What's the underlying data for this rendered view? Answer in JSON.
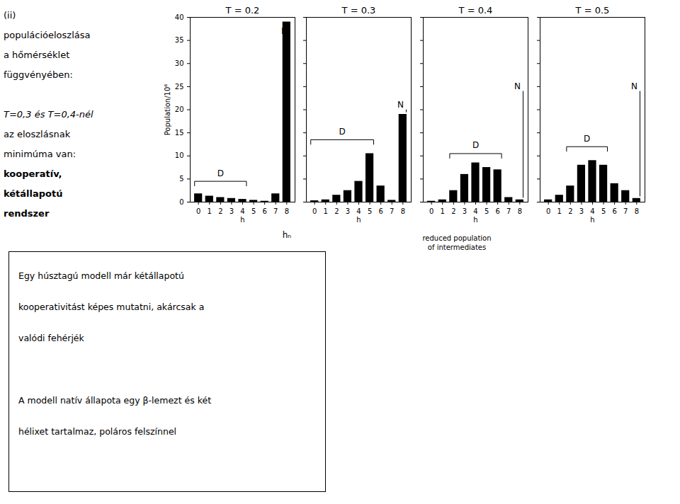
{
  "chart_data": [
    {
      "type": "bar",
      "title": "T = 0.2",
      "categories": [
        "0",
        "1",
        "2",
        "3",
        "4",
        "5",
        "6",
        "7",
        "8"
      ],
      "values": [
        1.8,
        1.3,
        1.0,
        0.8,
        0.6,
        0.4,
        0.2,
        1.8,
        39.0
      ],
      "xlabel": "h",
      "ylabel": "Population/10⁶",
      "ylim": [
        0,
        40
      ],
      "yticks": [
        0,
        5,
        10,
        15,
        20,
        25,
        30,
        35,
        40
      ],
      "grid": false,
      "bracket": {
        "x": [
          0,
          4
        ],
        "y": 4.5,
        "label": "D",
        "label_x": 2.0,
        "label_y": 5.5
      },
      "annotations": [
        {
          "text": "N",
          "x": 7.5,
          "y": 37.0,
          "anchor": "left",
          "line": false
        },
        {
          "text": "hₙ",
          "x": 8.0,
          "y": -6.5,
          "anchor": "top",
          "line": false
        }
      ]
    },
    {
      "type": "bar",
      "title": "T = 0.3",
      "categories": [
        "0",
        "1",
        "2",
        "3",
        "4",
        "5",
        "6",
        "7",
        "8"
      ],
      "values": [
        0.3,
        0.5,
        1.5,
        2.5,
        4.5,
        10.5,
        3.5,
        0.4,
        19.0
      ],
      "xlabel": "h",
      "ylim": [
        0,
        40
      ],
      "yticks": [
        0,
        5,
        10,
        15,
        20,
        25,
        30,
        35,
        40
      ],
      "grid": false,
      "tick_labels": "x",
      "bracket": {
        "x": [
          0,
          5
        ],
        "y": 13.5,
        "label": "D",
        "label_x": 2.5,
        "label_y": 14.5
      },
      "annotations": [
        {
          "text": "N",
          "x": 7.5,
          "y": 21.0,
          "anchor": "left",
          "line": true
        }
      ]
    },
    {
      "type": "bar",
      "title": "T = 0.4",
      "categories": [
        "0",
        "1",
        "2",
        "3",
        "4",
        "5",
        "6",
        "7",
        "8"
      ],
      "values": [
        0.2,
        0.5,
        2.5,
        6.0,
        8.5,
        7.5,
        7.0,
        1.0,
        0.5
      ],
      "xlabel": "h",
      "ylim": [
        0,
        40
      ],
      "yticks": [
        0,
        5,
        10,
        15,
        20,
        25,
        30,
        35,
        40
      ],
      "grid": false,
      "tick_labels": "x",
      "bracket": {
        "x": [
          2,
          6
        ],
        "y": 10.5,
        "label": "D",
        "label_x": 4.0,
        "label_y": 11.5
      },
      "annotations": [
        {
          "text": "N",
          "x": 7.5,
          "y": 25.0,
          "anchor": "left",
          "line": true
        }
      ]
    },
    {
      "type": "bar",
      "title": "T = 0.5",
      "categories": [
        "0",
        "1",
        "2",
        "3",
        "4",
        "5",
        "6",
        "7",
        "8"
      ],
      "values": [
        0.5,
        1.5,
        3.5,
        8.0,
        9.0,
        8.0,
        4.0,
        2.5,
        0.8
      ],
      "xlabel": "h",
      "ylim": [
        0,
        40
      ],
      "yticks": [
        0,
        5,
        10,
        15,
        20,
        25,
        30,
        35,
        40
      ],
      "grid": false,
      "tick_labels": "x",
      "bracket": {
        "x": [
          2,
          5
        ],
        "y": 12.0,
        "label": "D",
        "label_x": 3.5,
        "label_y": 13.0
      },
      "annotations": [
        {
          "text": "N",
          "x": 7.5,
          "y": 25.0,
          "anchor": "left",
          "line": true
        }
      ]
    }
  ],
  "side_text": [
    [
      "(ii)",
      "populációeloszlása",
      "a hőmérséklet",
      "függvényében:"
    ],
    [
      {
        "text": "T=0,3 és T=0,4-nél",
        "style": "italic"
      },
      "az eloszlásnak",
      "minimúma van:",
      {
        "text": "kooperatív,",
        "style": "bold"
      },
      {
        "text": "kétállapotú",
        "style": "bold"
      },
      {
        "text": "rendszer",
        "style": "bold"
      }
    ]
  ],
  "box_text": [
    [
      "Egy húsztagú modell már kétállapotú",
      "kooperativitást képes mutatni, akárcsak a",
      "valódi fehérjék"
    ],
    [
      "A modell natív állapota egy β-lemezt és két",
      "hélixet tartalmaz, poláros felszínnel"
    ]
  ],
  "caption": "reduced population\nof intermediates"
}
